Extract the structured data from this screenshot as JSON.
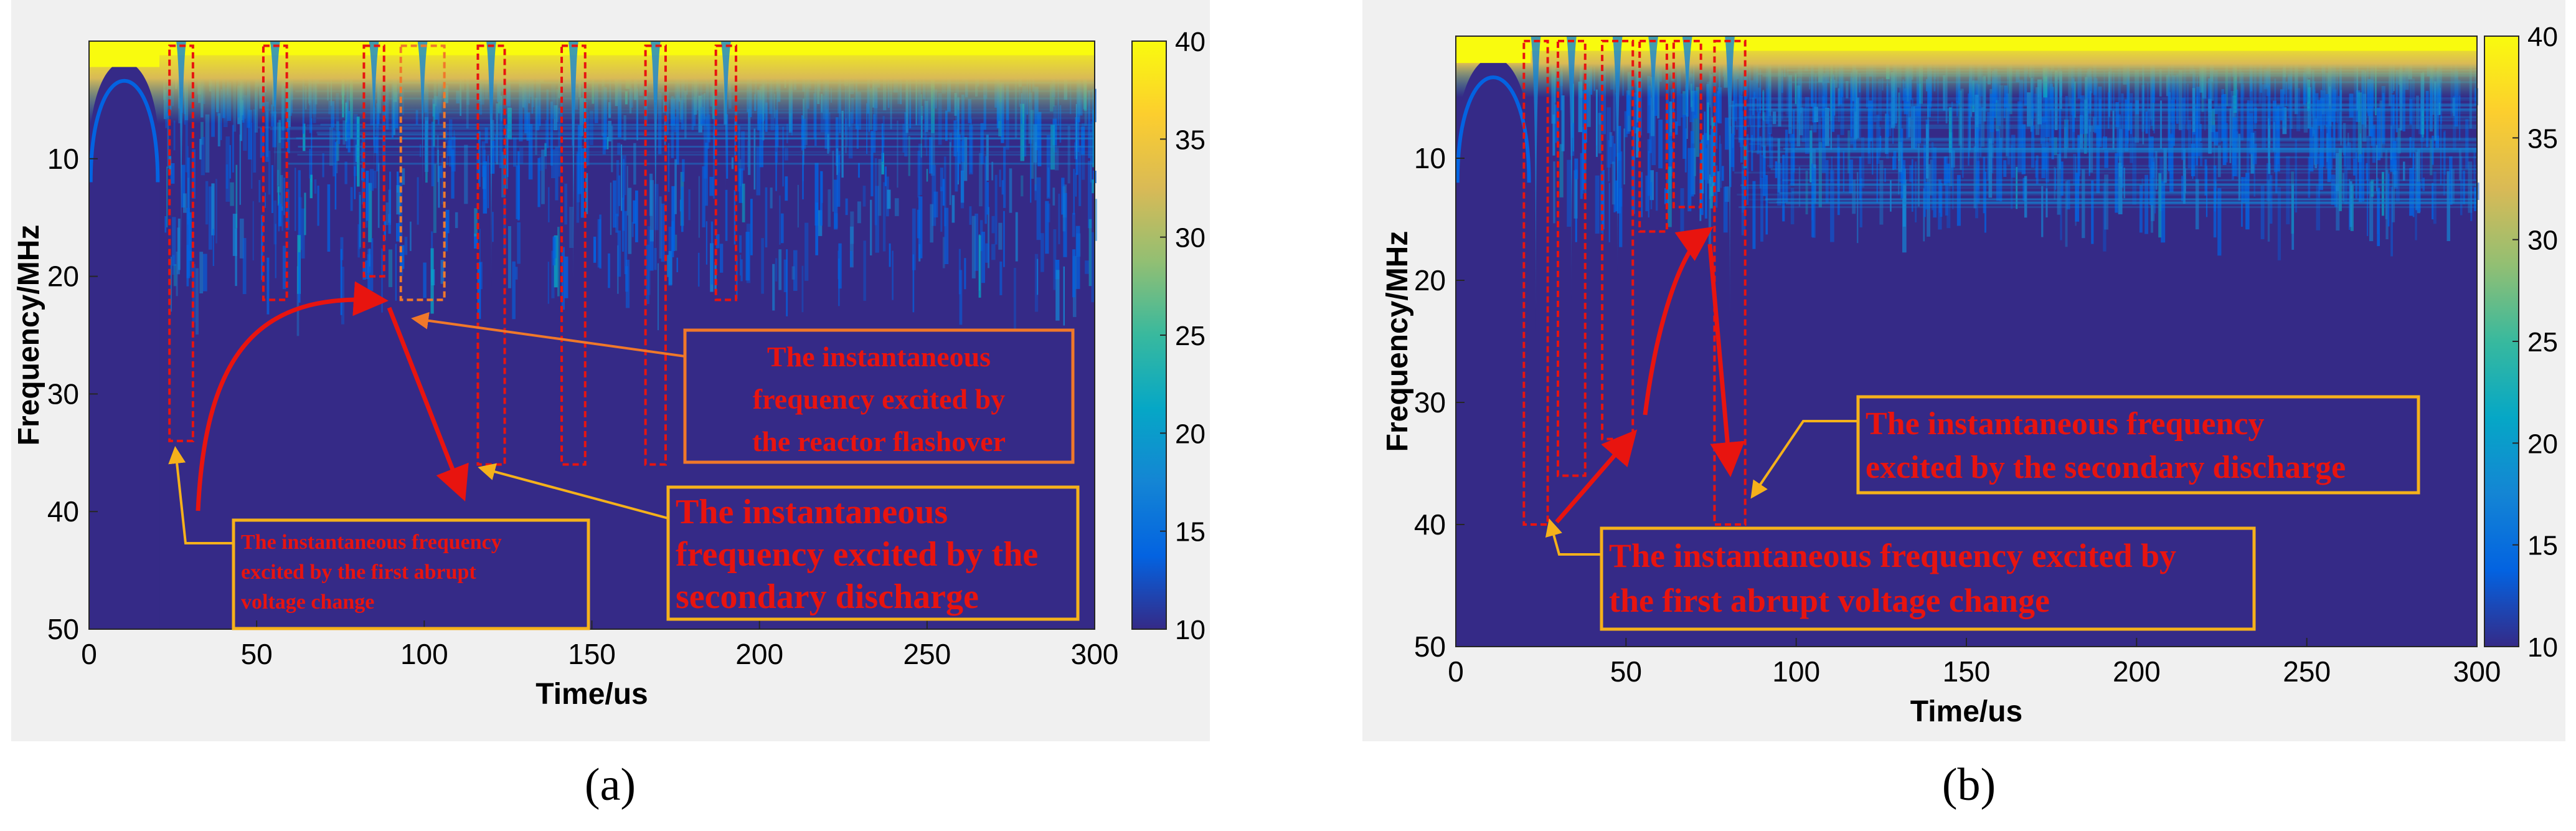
{
  "figures": [
    {
      "id": "a",
      "caption": "(a)",
      "annotations": {
        "reactor": [
          "The instantaneous",
          "frequency excited by",
          "the reactor flashover"
        ],
        "secondary": [
          "The instantaneous",
          "frequency excited by the",
          "secondary discharge"
        ],
        "first": [
          "The instantaneous frequency",
          "excited by the first abrupt",
          "voltage change"
        ]
      }
    },
    {
      "id": "b",
      "caption": "(b)",
      "annotations": {
        "secondary": [
          "The instantaneous frequency",
          "excited by the secondary discharge"
        ],
        "first": [
          "The instantaneous frequency excited by",
          "the first abrupt voltage change"
        ]
      }
    }
  ],
  "chart_data": [
    {
      "type": "heatmap",
      "panel": "a",
      "title": "",
      "xlabel": "Time/us",
      "ylabel": "Frequency/MHz",
      "xlim": [
        0,
        300
      ],
      "ylim": [
        0,
        50
      ],
      "y_reversed": true,
      "xticks": [
        0,
        50,
        100,
        150,
        200,
        250,
        300
      ],
      "yticks": [
        10,
        20,
        30,
        40,
        50
      ],
      "colorbar": {
        "min": 10,
        "max": 40,
        "ticks": [
          10,
          15,
          20,
          25,
          30,
          35,
          40
        ],
        "colormap": "parula"
      },
      "marked_bands_us": [
        [
          24,
          31
        ],
        [
          52,
          59
        ],
        [
          82,
          88
        ],
        [
          93,
          106
        ],
        [
          116,
          124
        ],
        [
          141,
          148
        ],
        [
          166,
          172
        ],
        [
          187,
          193
        ]
      ],
      "marked_band_max_freq_MHz": [
        34,
        22,
        20,
        22,
        36,
        36,
        36,
        22
      ]
    },
    {
      "type": "heatmap",
      "panel": "b",
      "title": "",
      "xlabel": "Time/us",
      "ylabel": "Frequency/MHz",
      "xlim": [
        0,
        300
      ],
      "ylim": [
        0,
        50
      ],
      "y_reversed": true,
      "xticks": [
        0,
        50,
        100,
        150,
        200,
        250,
        300
      ],
      "yticks": [
        10,
        20,
        30,
        40,
        50
      ],
      "colorbar": {
        "min": 10,
        "max": 40,
        "ticks": [
          10,
          15,
          20,
          25,
          30,
          35,
          40
        ],
        "colormap": "parula"
      },
      "marked_bands_us": [
        [
          20,
          27
        ],
        [
          30,
          38
        ],
        [
          43,
          52
        ],
        [
          54,
          62
        ],
        [
          64,
          72
        ],
        [
          76,
          85
        ]
      ],
      "marked_band_max_freq_MHz": [
        40,
        36,
        33,
        16,
        14,
        40
      ]
    }
  ]
}
